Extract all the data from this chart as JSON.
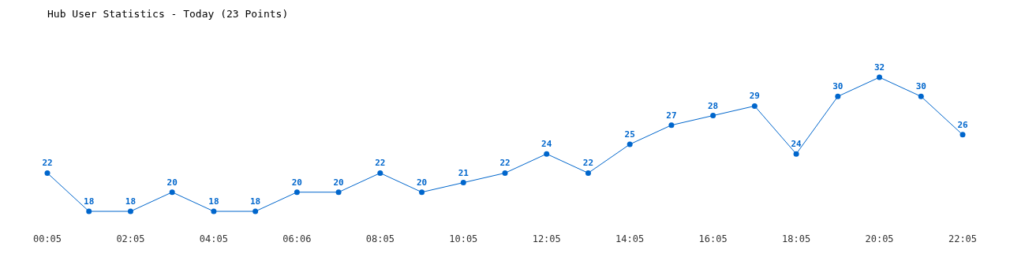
{
  "chart_data": {
    "type": "line",
    "title": "Hub User Statistics - Today (23 Points)",
    "categories": [
      "00:05",
      null,
      "02:05",
      null,
      "04:05",
      null,
      "06:06",
      null,
      "08:05",
      null,
      "10:05",
      null,
      "12:05",
      null,
      "14:05",
      null,
      "16:05",
      null,
      "18:05",
      null,
      "20:05",
      null,
      "22:05"
    ],
    "values": [
      22,
      18,
      18,
      20,
      18,
      18,
      20,
      20,
      22,
      20,
      21,
      22,
      24,
      22,
      25,
      27,
      28,
      29,
      24,
      30,
      32,
      30,
      26
    ],
    "color": "#0066cc",
    "marker": "circle",
    "data_labels": true
  }
}
